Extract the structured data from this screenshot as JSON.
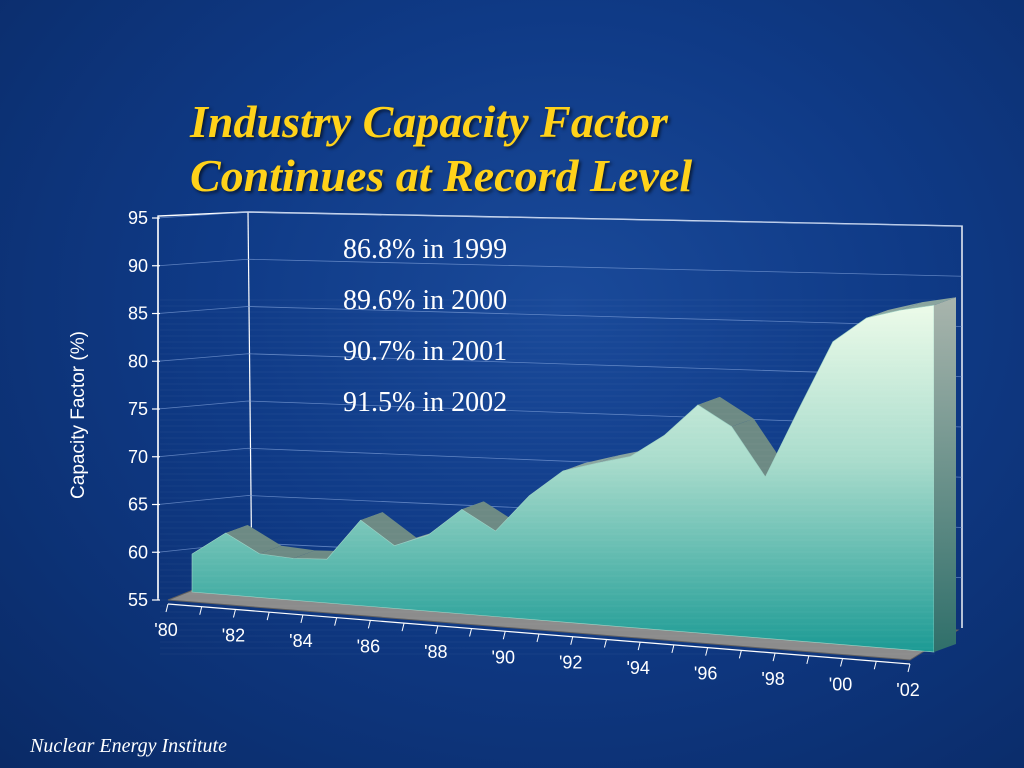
{
  "title": {
    "line1": "Industry Capacity Factor",
    "line2": "Continues at Record Level"
  },
  "footer": "Nuclear Energy Institute",
  "chart_data": {
    "type": "area",
    "title": "Industry Capacity Factor Continues at Record Level",
    "xlabel": "",
    "ylabel": "Capacity Factor (%)",
    "ylim": [
      55,
      95
    ],
    "yticks": [
      "55",
      "60",
      "65",
      "70",
      "75",
      "80",
      "85",
      "90",
      "95"
    ],
    "xticks": [
      "'80",
      "'82",
      "'84",
      "'86",
      "'88",
      "'90",
      "'92",
      "'94",
      "'96",
      "'98",
      "'00",
      "'02"
    ],
    "grid": true,
    "style": "3d",
    "x": [
      1980,
      1981,
      1982,
      1983,
      1984,
      1985,
      1986,
      1987,
      1988,
      1989,
      1990,
      1991,
      1992,
      1993,
      1994,
      1995,
      1996,
      1997,
      1998,
      1999,
      2000,
      2001,
      2002
    ],
    "values": [
      59.0,
      61.5,
      59.6,
      59.4,
      59.6,
      64.0,
      61.6,
      63.0,
      66.0,
      64.0,
      68.0,
      70.9,
      72.0,
      73.0,
      75.5,
      79.0,
      77.0,
      72.0,
      79.5,
      86.8,
      89.6,
      90.7,
      91.5
    ],
    "annotations": [
      "86.8% in 1999",
      "89.6% in 2000",
      "90.7% in 2001",
      "91.5% in 2002"
    ],
    "colors": {
      "area_top": "#ecfbe9",
      "area_bottom": "#1b9a94",
      "ridge": "#8aa59e",
      "floor": "#8c8c8c",
      "grid": "#7f9fd8",
      "wall_line": "#ffffff"
    }
  }
}
